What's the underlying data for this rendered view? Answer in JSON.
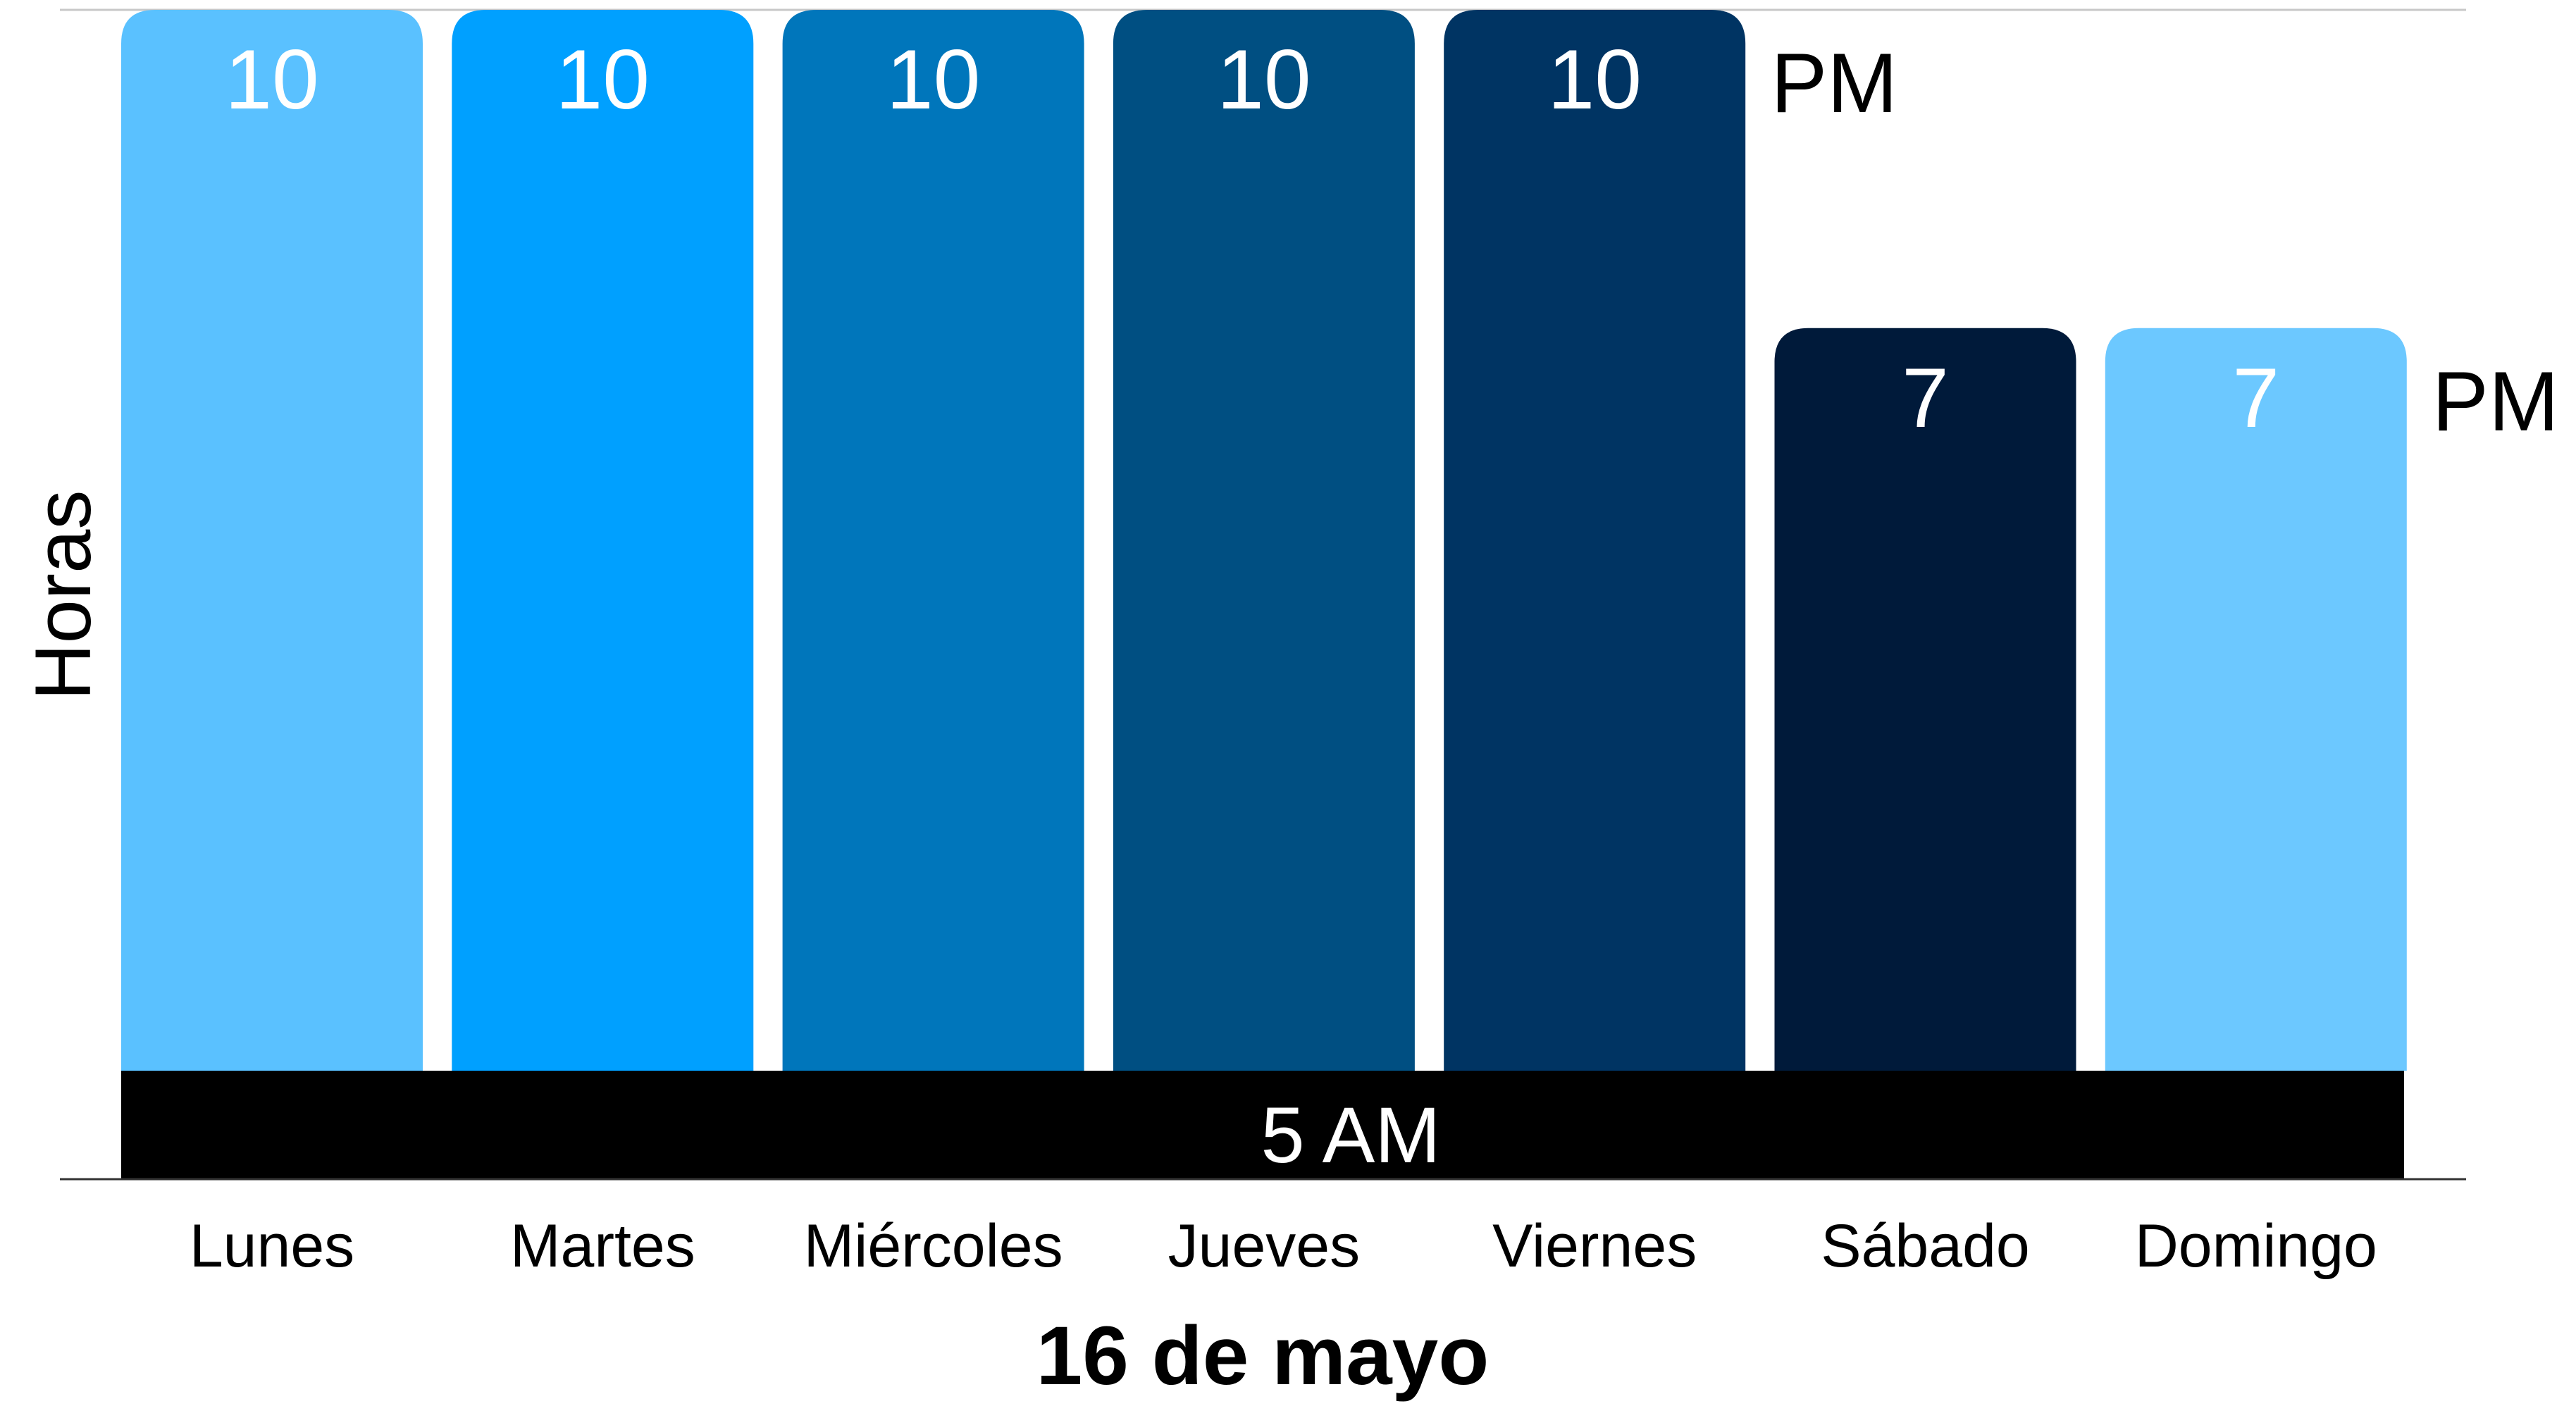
{
  "chart_data": {
    "type": "bar",
    "categories": [
      "Lunes",
      "Martes",
      "Miércoles",
      "Jueves",
      "Viernes",
      "Sábado",
      "Domingo"
    ],
    "values": [
      10,
      10,
      10,
      10,
      10,
      7,
      7
    ],
    "colors": [
      "#5ac1ff",
      "#00a0ff",
      "#0076bb",
      "#004f82",
      "#003463",
      "#001a3a",
      "#6cc8ff"
    ],
    "base_label": "5 AM",
    "end_labels": [
      "PM",
      "PM"
    ],
    "title": "",
    "xlabel": "16 de mayo",
    "ylabel": "Horas",
    "ylim": [
      0,
      10
    ],
    "grid": false,
    "legend": "none",
    "label_color": "#ffffff",
    "base_color": "#000000"
  }
}
